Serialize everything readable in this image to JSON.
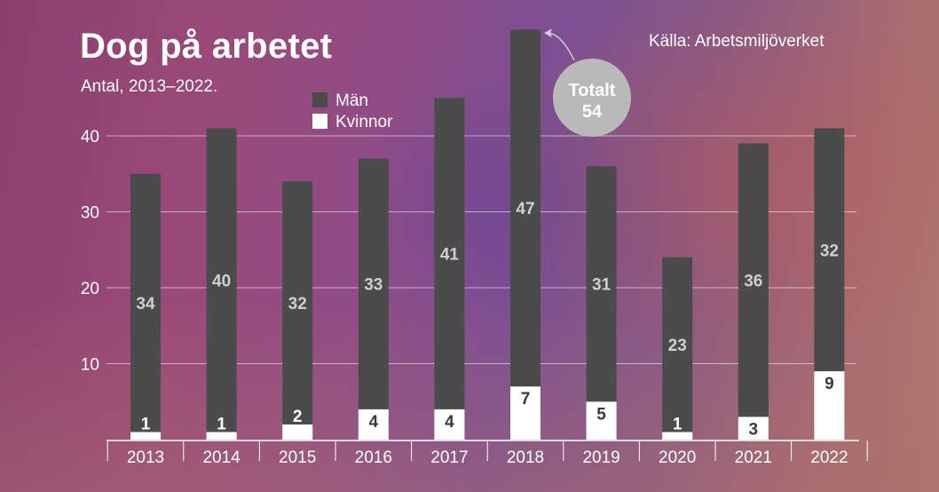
{
  "header": {
    "title": "Dog på arbetet",
    "subtitle": "Antal, 2013–2022.",
    "source": "Källa: Arbetsmiljöverket"
  },
  "callout": {
    "line1": "Totalt",
    "line2": "54",
    "year": "2018"
  },
  "colors": {
    "men": "#4b4b4b",
    "women": "#ffffff",
    "men_label": "#cfcfcf",
    "women_label": "#3a3a3a",
    "callout": "#b9b9b9",
    "gridline": "#ffffff"
  },
  "chart_data": {
    "type": "bar",
    "stacked": true,
    "categories": [
      "2013",
      "2014",
      "2015",
      "2016",
      "2017",
      "2018",
      "2019",
      "2020",
      "2021",
      "2022"
    ],
    "series": [
      {
        "name": "Kvinnor",
        "values": [
          1,
          1,
          2,
          4,
          4,
          7,
          5,
          1,
          3,
          9
        ]
      },
      {
        "name": "Män",
        "values": [
          34,
          40,
          32,
          33,
          41,
          47,
          31,
          23,
          36,
          32
        ]
      }
    ],
    "yticks": [
      10,
      20,
      30,
      40
    ],
    "ylim": [
      0,
      54
    ],
    "grid": true,
    "legend": "top-left",
    "legend_order": [
      "Män",
      "Kvinnor"
    ]
  }
}
